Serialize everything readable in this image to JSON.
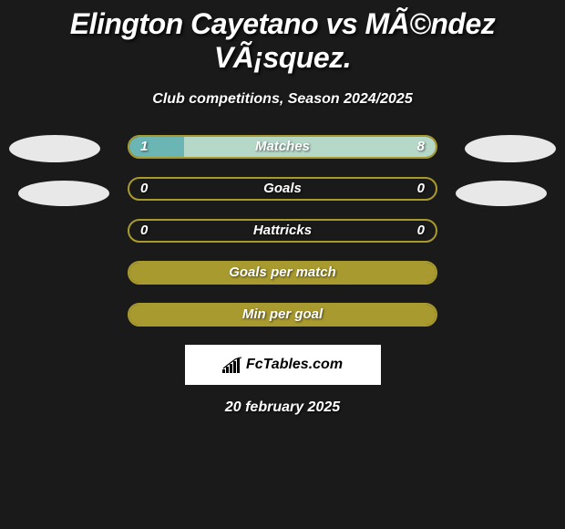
{
  "title": "Elington Cayetano vs MÃ©ndez VÃ¡squez.",
  "subtitle": "Club competitions, Season 2024/2025",
  "colors": {
    "background": "#1a1a1a",
    "olive": "#a89a2e",
    "teal": "#6bb5b5",
    "mint": "#b5d8c8",
    "avatar": "#e8e8e8",
    "text": "#ffffff"
  },
  "stats": [
    {
      "label": "Matches",
      "left_value": "1",
      "right_value": "8",
      "border_color": "#a89a2e",
      "left_fill_color": "#6bb5b5",
      "right_fill_color": "#b5d8c8",
      "left_fill_pct": 18,
      "right_fill_pct": 82
    },
    {
      "label": "Goals",
      "left_value": "0",
      "right_value": "0",
      "border_color": "#a89a2e",
      "left_fill_color": "#a89a2e",
      "right_fill_color": "#a89a2e",
      "left_fill_pct": 0,
      "right_fill_pct": 0
    },
    {
      "label": "Hattricks",
      "left_value": "0",
      "right_value": "0",
      "border_color": "#a89a2e",
      "left_fill_color": "#a89a2e",
      "right_fill_color": "#a89a2e",
      "left_fill_pct": 0,
      "right_fill_pct": 0
    },
    {
      "label": "Goals per match",
      "left_value": "",
      "right_value": "",
      "border_color": "#a89a2e",
      "left_fill_color": "#a89a2e",
      "right_fill_color": "#a89a2e",
      "left_fill_pct": 100,
      "right_fill_pct": 0
    },
    {
      "label": "Min per goal",
      "left_value": "",
      "right_value": "",
      "border_color": "#a89a2e",
      "left_fill_color": "#a89a2e",
      "right_fill_color": "#a89a2e",
      "left_fill_pct": 100,
      "right_fill_pct": 0
    }
  ],
  "logo_text": "FcTables.com",
  "date_text": "20 february 2025"
}
